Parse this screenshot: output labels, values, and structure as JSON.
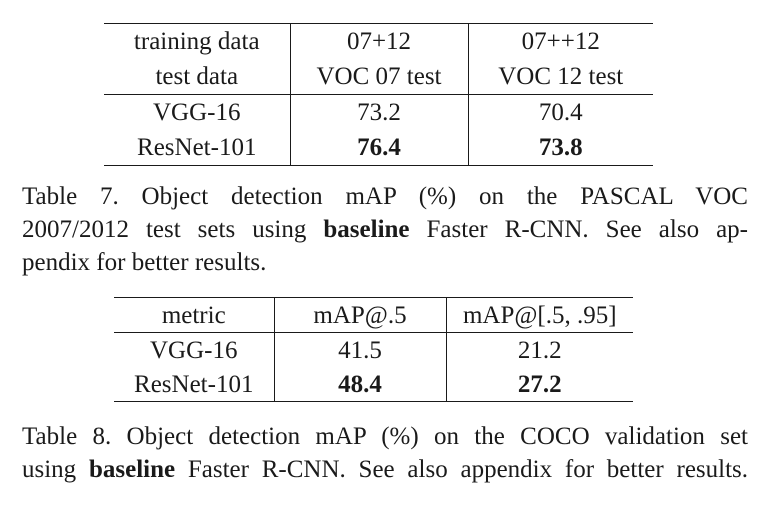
{
  "table7": {
    "header_rows": [
      [
        "training data",
        "07+12",
        "07++12"
      ],
      [
        "test data",
        "VOC 07 test",
        "VOC 12 test"
      ]
    ],
    "body_rows": [
      [
        "VGG-16",
        "73.2",
        "70.4"
      ],
      [
        "ResNet-101",
        "76.4",
        "73.8"
      ]
    ],
    "caption": {
      "line1": "Table 7. Object detection mAP (%) on the PASCAL VOC",
      "line2_prefix": "2007/2012 test sets using",
      "line2_bold": "baseline",
      "line2_suffix": "Faster R-CNN. See also ap-",
      "line3": "pendix for better results."
    }
  },
  "table8": {
    "header_row": [
      "metric",
      "mAP@.5",
      "mAP@[.5, .95]"
    ],
    "body_rows": [
      [
        "VGG-16",
        "41.5",
        "21.2"
      ],
      [
        "ResNet-101",
        "48.4",
        "27.2"
      ]
    ],
    "caption": {
      "line1": "Table 8. Object detection mAP (%) on the COCO validation set",
      "line2_prefix": "using",
      "line2_bold": "baseline",
      "line2_suffix": "Faster R-CNN. See also appendix for better results."
    }
  }
}
